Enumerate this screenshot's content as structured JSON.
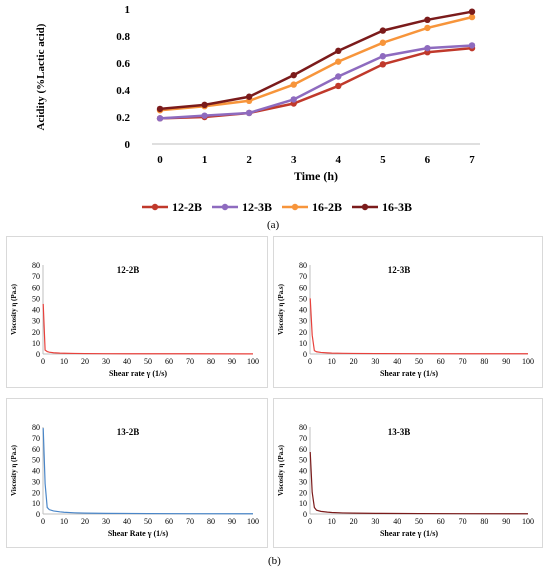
{
  "figure": {
    "caption_a": "(a)",
    "caption_b": "(b)"
  },
  "chart_data": [
    {
      "type": "line",
      "xlabel": "Time (h)",
      "ylabel": "Acidity (%Lactic acid)",
      "x": [
        0,
        1,
        2,
        3,
        4,
        5,
        6,
        7
      ],
      "ylim": [
        0,
        1
      ],
      "yticks": [
        0,
        0.2,
        0.4,
        0.6,
        0.8,
        1
      ],
      "ytick_labels": [
        "0",
        "0.2",
        "0.4",
        "0.6",
        "0.8",
        "1"
      ],
      "grid": false,
      "legend": "bottom",
      "series": [
        {
          "name": "12-2B",
          "color": "#c0392b",
          "values": [
            0.19,
            0.2,
            0.23,
            0.3,
            0.43,
            0.59,
            0.68,
            0.71
          ]
        },
        {
          "name": "12-3B",
          "color": "#8e6bbf",
          "values": [
            0.19,
            0.21,
            0.23,
            0.33,
            0.5,
            0.65,
            0.71,
            0.73
          ]
        },
        {
          "name": "16-2B",
          "color": "#f7953b",
          "values": [
            0.25,
            0.28,
            0.32,
            0.44,
            0.61,
            0.75,
            0.86,
            0.94
          ]
        },
        {
          "name": "16-3B",
          "color": "#7b1b1b",
          "values": [
            0.26,
            0.29,
            0.35,
            0.51,
            0.69,
            0.84,
            0.92,
            0.98
          ]
        }
      ]
    },
    {
      "type": "line",
      "title": "12-2B",
      "xlabel": "Shear rate γ (1/s)",
      "ylabel": "Viscosity η (Pa.s)",
      "xlim": [
        0,
        100
      ],
      "ylim": [
        0,
        80
      ],
      "xticks": [
        0,
        10,
        20,
        30,
        40,
        50,
        60,
        70,
        80,
        90,
        100
      ],
      "yticks": [
        0,
        10,
        20,
        30,
        40,
        50,
        60,
        70,
        80
      ],
      "series": [
        {
          "color": "#e8413c",
          "x": [
            0.1,
            1,
            2,
            3,
            5,
            8,
            10,
            15,
            20,
            30,
            50,
            70,
            100
          ],
          "values": [
            45,
            3.5,
            2.2,
            1.6,
            1.1,
            0.8,
            0.7,
            0.5,
            0.4,
            0.3,
            0.2,
            0.2,
            0.1
          ]
        }
      ]
    },
    {
      "type": "line",
      "title": "12-3B",
      "xlabel": "Shear rate γ (1/s)",
      "ylabel": "Viscosity η (Pa.s)",
      "xlim": [
        0,
        100
      ],
      "ylim": [
        0,
        80
      ],
      "xticks": [
        0,
        10,
        20,
        30,
        40,
        50,
        60,
        70,
        80,
        90,
        100
      ],
      "yticks": [
        0,
        10,
        20,
        30,
        40,
        50,
        60,
        70,
        80
      ],
      "series": [
        {
          "color": "#e8413c",
          "x": [
            0.1,
            1,
            2,
            3,
            5,
            8,
            10,
            15,
            20,
            30,
            50,
            70,
            100
          ],
          "values": [
            50,
            17,
            3,
            2,
            1.4,
            1,
            0.8,
            0.6,
            0.5,
            0.4,
            0.3,
            0.2,
            0.2
          ]
        }
      ]
    },
    {
      "type": "line",
      "title": "13-2B",
      "xlabel": "Shear Rate γ (1/s)",
      "ylabel": "Viscosity η (Pa.s)",
      "xlim": [
        0,
        100
      ],
      "ylim": [
        0,
        80
      ],
      "xticks": [
        0,
        10,
        20,
        30,
        40,
        50,
        60,
        70,
        80,
        90,
        100
      ],
      "yticks": [
        0,
        10,
        20,
        30,
        40,
        50,
        60,
        70,
        80
      ],
      "series": [
        {
          "color": "#4a86c8",
          "x": [
            0.1,
            1,
            2,
            3,
            5,
            8,
            10,
            15,
            20,
            30,
            50,
            70,
            100
          ],
          "values": [
            79,
            28,
            6,
            4,
            2.8,
            2,
            1.6,
            1.1,
            0.8,
            0.6,
            0.4,
            0.3,
            0.2
          ]
        }
      ]
    },
    {
      "type": "line",
      "title": "13-3B",
      "xlabel": "Shear rate γ (1/s)",
      "ylabel": "Viscosity η (Pa.s)",
      "xlim": [
        0,
        100
      ],
      "ylim": [
        0,
        80
      ],
      "xticks": [
        0,
        10,
        20,
        30,
        40,
        50,
        60,
        70,
        80,
        90,
        100
      ],
      "yticks": [
        0,
        10,
        20,
        30,
        40,
        50,
        60,
        70,
        80
      ],
      "series": [
        {
          "color": "#7b1b1b",
          "x": [
            0.1,
            1,
            2,
            3,
            5,
            8,
            10,
            15,
            20,
            30,
            50,
            70,
            100
          ],
          "values": [
            57,
            20,
            6,
            3.5,
            2.4,
            1.7,
            1.4,
            1,
            0.8,
            0.6,
            0.4,
            0.3,
            0.2
          ]
        }
      ]
    }
  ]
}
